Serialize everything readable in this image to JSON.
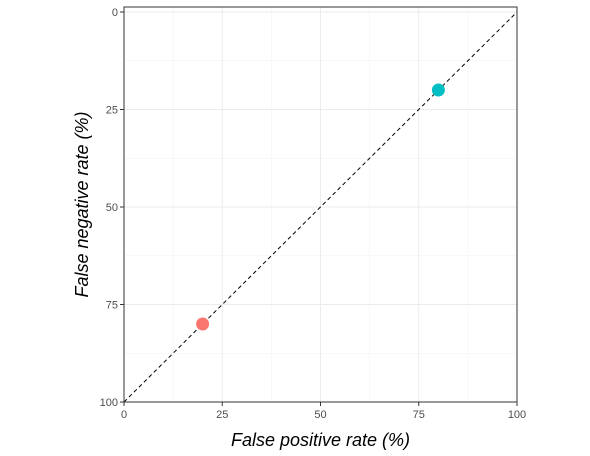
{
  "chart_data": {
    "type": "scatter",
    "xlabel": "False positive rate (%)",
    "ylabel": "False negative rate (%)",
    "xlim": [
      0,
      100
    ],
    "ylim": [
      0,
      100
    ],
    "y_axis_reversed": true,
    "grid": true,
    "x_ticks": [
      0,
      25,
      50,
      75,
      100
    ],
    "y_ticks": [
      0,
      25,
      50,
      75,
      100
    ],
    "x_tick_labels": [
      "0",
      "25",
      "50",
      "75",
      "100"
    ],
    "y_tick_labels": [
      "0",
      "25",
      "50",
      "75",
      "100"
    ],
    "reference_line": {
      "from": [
        0,
        100
      ],
      "to": [
        100,
        0
      ],
      "style": "dashed",
      "color": "#000000"
    },
    "points": [
      {
        "x": 20,
        "y": 80,
        "color": "#F8766D"
      },
      {
        "x": 80,
        "y": 20,
        "color": "#00BFC4"
      }
    ]
  }
}
